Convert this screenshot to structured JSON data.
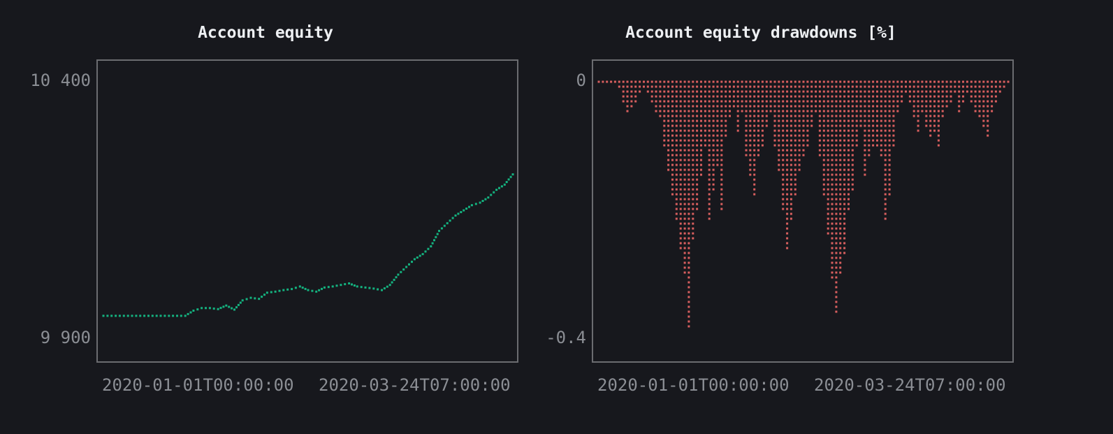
{
  "chart_data": [
    {
      "type": "scatter",
      "title": "Account equity",
      "color": "#14b27f",
      "yticks": [
        "10 400",
        "9 900"
      ],
      "ylim": [
        9900,
        10400
      ],
      "xticks": [
        "2020-01-01T00:00:00",
        "2020-03-24T07:00:00"
      ],
      "series": [
        {
          "x": [
            0,
            2,
            4,
            6,
            8,
            10,
            12,
            14,
            16,
            18,
            20,
            22,
            24,
            26,
            28,
            30,
            32,
            34,
            36,
            38,
            40,
            42,
            44,
            46,
            48,
            50,
            52,
            54,
            56,
            58,
            60,
            62,
            64,
            66,
            68,
            70,
            72,
            74,
            76,
            78,
            80,
            82,
            84,
            86,
            88,
            90,
            92,
            94,
            96,
            98,
            100
          ],
          "y": [
            9945,
            9945,
            9945,
            9945,
            9945,
            9945,
            9945,
            9945,
            9945,
            9945,
            9945,
            9955,
            9960,
            9960,
            9958,
            9965,
            9957,
            9975,
            9980,
            9978,
            9990,
            9992,
            9995,
            9997,
            10002,
            9995,
            9992,
            10000,
            10002,
            10005,
            10008,
            10002,
            10000,
            9998,
            9995,
            10005,
            10025,
            10040,
            10055,
            10065,
            10080,
            10110,
            10125,
            10140,
            10150,
            10160,
            10165,
            10175,
            10190,
            10200,
            10220
          ]
        }
      ]
    },
    {
      "type": "scatter",
      "title": "Account equity drawdowns [%]",
      "color": "#d95f5f",
      "yticks": [
        "0",
        "-0.4"
      ],
      "ylim": [
        -0.4,
        0
      ],
      "xticks": [
        "2020-01-01T00:00:00",
        "2020-03-24T07:00:00"
      ],
      "series": [
        {
          "x": [
            0,
            1,
            2,
            3,
            4,
            5,
            6,
            7,
            8,
            9,
            10,
            11,
            12,
            13,
            14,
            15,
            16,
            17,
            18,
            19,
            20,
            21,
            22,
            23,
            24,
            25,
            26,
            27,
            28,
            29,
            30,
            31,
            32,
            33,
            34,
            35,
            36,
            37,
            38,
            39,
            40,
            41,
            42,
            43,
            44,
            45,
            46,
            47,
            48,
            49,
            50,
            51,
            52,
            53,
            54,
            55,
            56,
            57,
            58,
            59,
            60,
            61,
            62,
            63,
            64,
            65,
            66,
            67,
            68,
            69,
            70,
            71,
            72,
            73,
            74,
            75,
            76,
            77,
            78,
            79,
            80,
            81,
            82,
            83,
            84,
            85,
            86,
            87,
            88,
            89,
            90,
            91,
            92,
            93,
            94,
            95,
            96,
            97,
            98,
            99,
            100
          ],
          "y": [
            0,
            0,
            0,
            0,
            0,
            -0.01,
            -0.03,
            -0.05,
            -0.04,
            -0.03,
            -0.02,
            -0.01,
            -0.02,
            -0.03,
            -0.05,
            -0.06,
            -0.1,
            -0.14,
            -0.18,
            -0.22,
            -0.26,
            -0.3,
            -0.38,
            -0.25,
            -0.2,
            -0.15,
            -0.1,
            -0.22,
            -0.17,
            -0.13,
            -0.2,
            -0.09,
            -0.06,
            -0.04,
            -0.08,
            -0.05,
            -0.12,
            -0.15,
            -0.18,
            -0.12,
            -0.1,
            -0.07,
            -0.05,
            -0.1,
            -0.14,
            -0.2,
            -0.26,
            -0.22,
            -0.18,
            -0.14,
            -0.12,
            -0.1,
            -0.07,
            -0.05,
            -0.12,
            -0.18,
            -0.24,
            -0.31,
            -0.36,
            -0.3,
            -0.27,
            -0.2,
            -0.17,
            -0.1,
            -0.07,
            -0.15,
            -0.12,
            -0.1,
            -0.1,
            -0.12,
            -0.22,
            -0.18,
            -0.1,
            -0.05,
            -0.03,
            -0.02,
            -0.03,
            -0.06,
            -0.08,
            -0.05,
            -0.07,
            -0.09,
            -0.08,
            -0.1,
            -0.06,
            -0.04,
            -0.03,
            -0.02,
            -0.05,
            -0.03,
            -0.02,
            -0.03,
            -0.05,
            -0.06,
            -0.07,
            -0.09,
            -0.05,
            -0.03,
            -0.02,
            -0.01,
            0
          ]
        }
      ]
    }
  ]
}
